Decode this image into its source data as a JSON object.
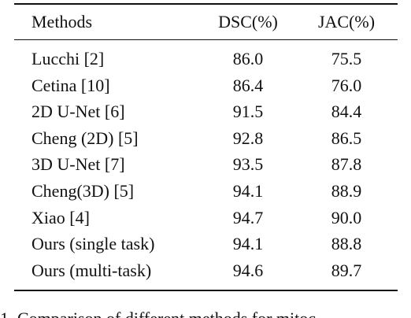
{
  "table": {
    "header": [
      "Methods",
      "DSC(%)",
      "JAC(%)"
    ],
    "rows": [
      [
        "Lucchi [2]",
        "86.0",
        "75.5"
      ],
      [
        "Cetina [10]",
        "86.4",
        "76.0"
      ],
      [
        "2D U-Net [6]",
        "91.5",
        "84.4"
      ],
      [
        "Cheng (2D) [5]",
        "92.8",
        "86.5"
      ],
      [
        "3D U-Net [7]",
        "93.5",
        "87.8"
      ],
      [
        "Cheng(3D) [5]",
        "94.1",
        "88.9"
      ],
      [
        "Xiao [4]",
        "94.7",
        "90.0"
      ],
      [
        "Ours (single task)",
        "94.1",
        "88.8"
      ],
      [
        "Ours (multi-task)",
        "94.6",
        "89.7"
      ]
    ],
    "caption": "1. Comparison of different methods for mitoc"
  }
}
